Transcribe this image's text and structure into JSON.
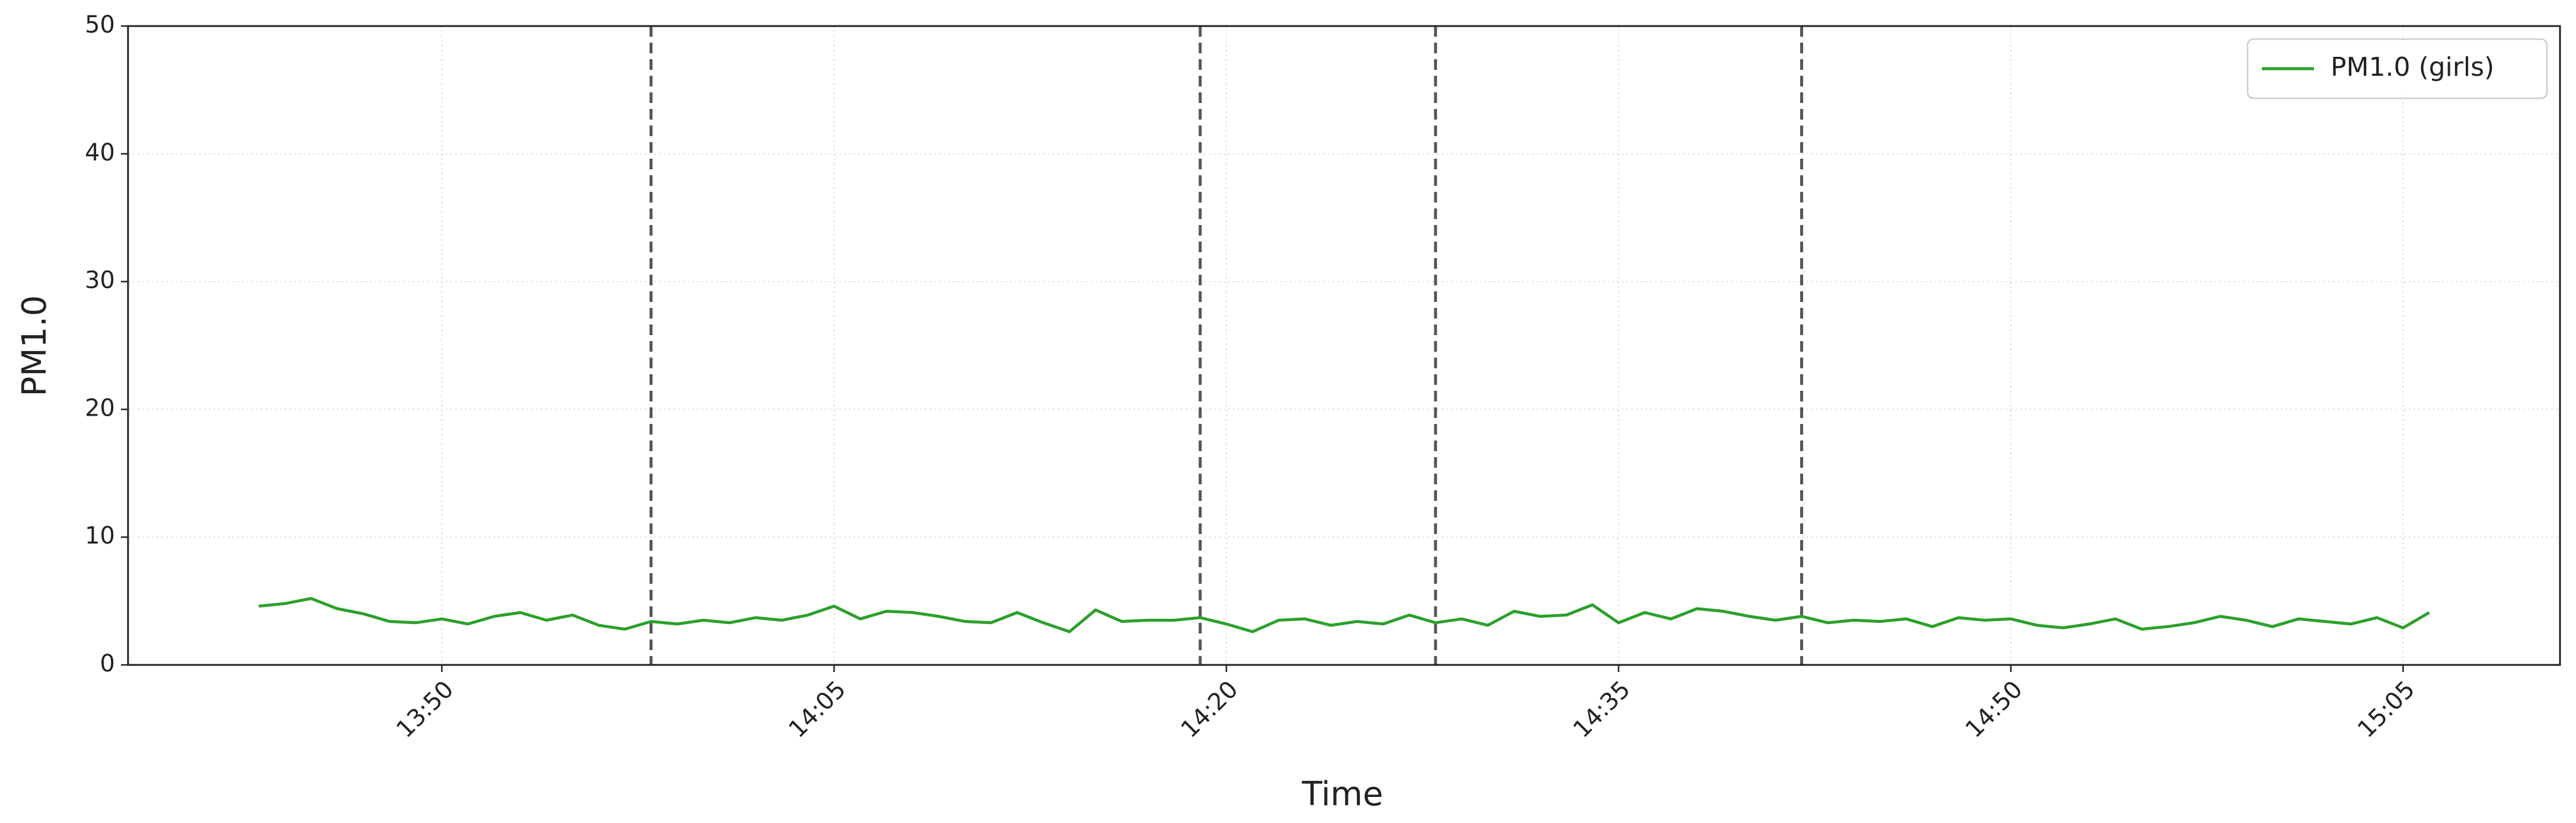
{
  "chart_data": {
    "type": "line",
    "xlabel": "Time",
    "ylabel": "PM1.0",
    "x": [
      "13:43",
      "13:44",
      "13:45",
      "13:46",
      "13:47",
      "13:48",
      "13:49",
      "13:50",
      "13:51",
      "13:52",
      "13:53",
      "13:54",
      "13:55",
      "13:56",
      "13:57",
      "13:58",
      "13:59",
      "14:00",
      "14:01",
      "14:02",
      "14:03",
      "14:04",
      "14:05",
      "14:06",
      "14:07",
      "14:08",
      "14:09",
      "14:10",
      "14:11",
      "14:12",
      "14:13",
      "14:14",
      "14:15",
      "14:16",
      "14:17",
      "14:18",
      "14:19",
      "14:20",
      "14:21",
      "14:22",
      "14:23",
      "14:24",
      "14:25",
      "14:26",
      "14:27",
      "14:28",
      "14:29",
      "14:30",
      "14:31",
      "14:32",
      "14:33",
      "14:34",
      "14:35",
      "14:36",
      "14:37",
      "14:38",
      "14:39",
      "14:40",
      "14:41",
      "14:42",
      "14:43",
      "14:44",
      "14:45",
      "14:46",
      "14:47",
      "14:48",
      "14:49",
      "14:50",
      "14:51",
      "14:52",
      "14:53",
      "14:54",
      "14:55",
      "14:56",
      "14:57",
      "14:58",
      "14:59",
      "15:00",
      "15:01",
      "15:02",
      "15:03",
      "15:04",
      "15:05",
      "15:06"
    ],
    "series": [
      {
        "name": "PM1.0 (girls)",
        "color": "#2ca02c",
        "values": [
          4.6,
          4.8,
          5.2,
          4.4,
          4.0,
          3.4,
          3.3,
          3.6,
          3.2,
          3.8,
          4.1,
          3.5,
          3.9,
          3.1,
          2.8,
          3.4,
          3.2,
          3.5,
          3.3,
          3.7,
          3.5,
          3.9,
          4.6,
          3.6,
          4.2,
          4.1,
          3.8,
          3.4,
          3.3,
          4.1,
          3.3,
          2.6,
          4.3,
          3.4,
          3.5,
          3.5,
          3.7,
          3.2,
          2.6,
          3.5,
          3.6,
          3.1,
          3.4,
          3.2,
          3.9,
          3.3,
          3.6,
          3.1,
          4.2,
          3.8,
          3.9,
          4.7,
          3.3,
          4.1,
          3.6,
          4.4,
          4.2,
          3.8,
          3.5,
          3.8,
          3.3,
          3.5,
          3.4,
          3.6,
          3.0,
          3.7,
          3.5,
          3.6,
          3.1,
          2.9,
          3.2,
          3.6,
          2.8,
          3.0,
          3.3,
          3.8,
          3.5,
          3.0,
          3.6,
          3.4,
          3.2,
          3.7,
          2.9,
          4.1
        ]
      }
    ],
    "vlines": [
      "13:58",
      "14:19",
      "14:28",
      "14:42"
    ],
    "xlim": [
      "13:38",
      "15:11"
    ],
    "xticks": [
      "13:50",
      "14:05",
      "14:20",
      "14:35",
      "14:50",
      "15:05"
    ],
    "ylim": [
      0,
      50
    ],
    "yticks": [
      0,
      10,
      20,
      30,
      40,
      50
    ],
    "grid": true,
    "legend": "upper right"
  }
}
